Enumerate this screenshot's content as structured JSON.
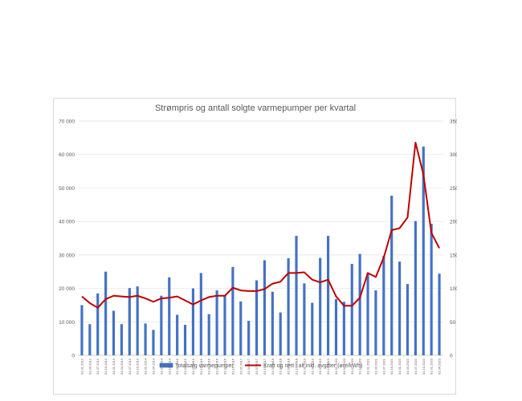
{
  "chart_data": {
    "type": "bar",
    "title": "Strømpris og antall solgte varmepumper per kvartal",
    "categories": [
      "01.01.2012",
      "01.04.2012",
      "01.07.2012",
      "01.10.2012",
      "01.01.2013",
      "01.04.2013",
      "01.07.2013",
      "01.10.2013",
      "01.01.2014",
      "01.04.2014",
      "01.07.2014",
      "01.10.2014",
      "01.01.2015",
      "01.04.2015",
      "01.07.2015",
      "01.10.2015",
      "01.01.2016",
      "01.04.2016",
      "01.07.2016",
      "01.10.2016",
      "01.01.2017",
      "01.04.2017",
      "01.07.2017",
      "01.10.2017",
      "01.01.2018",
      "01.04.2018",
      "01.07.2018",
      "01.10.2018",
      "01.01.2019",
      "01.04.2019",
      "01.07.2019",
      "01.10.2019",
      "01.01.2020",
      "01.04.2020",
      "01.07.2020",
      "01.10.2020",
      "01.01.2021",
      "01.04.2021",
      "01.07.2021",
      "01.10.2021",
      "01.01.2022",
      "01.04.2022",
      "01.07.2022",
      "01.10.2022",
      "01.01.2023",
      "01.04.2023"
    ],
    "series": [
      {
        "name": "Totalsalg varmepumper",
        "kind": "bar",
        "axis": "left",
        "color": "#4472c4",
        "values": [
          15000,
          9300,
          18500,
          25000,
          13300,
          9300,
          20100,
          20600,
          9500,
          7600,
          17800,
          23300,
          12100,
          9100,
          20000,
          24600,
          12300,
          19400,
          18000,
          26400,
          16100,
          10300,
          22400,
          28400,
          19000,
          12800,
          29000,
          35700,
          21500,
          15700,
          29100,
          35700,
          16800,
          16000,
          27300,
          30300,
          24600,
          19400,
          29700,
          47700,
          28000,
          21300,
          40100,
          62400,
          39300,
          24400
        ]
      },
      {
        "name": "Kraft og nett i alt inkl. avgifter (øre/kWh)",
        "kind": "line",
        "axis": "right",
        "color": "#c00000",
        "values": [
          88,
          78,
          71,
          84,
          89,
          88,
          87,
          89,
          85,
          80,
          85,
          86,
          88,
          82,
          76,
          82,
          87,
          89,
          89,
          101,
          97,
          96,
          96,
          99,
          107,
          110,
          123,
          123,
          124,
          113,
          109,
          113,
          88,
          74,
          74,
          86,
          123,
          117,
          146,
          187,
          190,
          206,
          318,
          270,
          183,
          160
        ]
      }
    ],
    "y_left": {
      "min": 0,
      "max": 70000,
      "step": 10000,
      "tick_labels": [
        "0",
        "10 000",
        "20 000",
        "30 000",
        "40 000",
        "50 000",
        "60 000",
        "70 000"
      ]
    },
    "y_right": {
      "min": 0,
      "max": 350,
      "step": 50,
      "tick_labels": [
        "0",
        "50",
        "100",
        "150",
        "200",
        "250",
        "300",
        "350"
      ]
    },
    "grid": true,
    "legend_position": "bottom"
  }
}
